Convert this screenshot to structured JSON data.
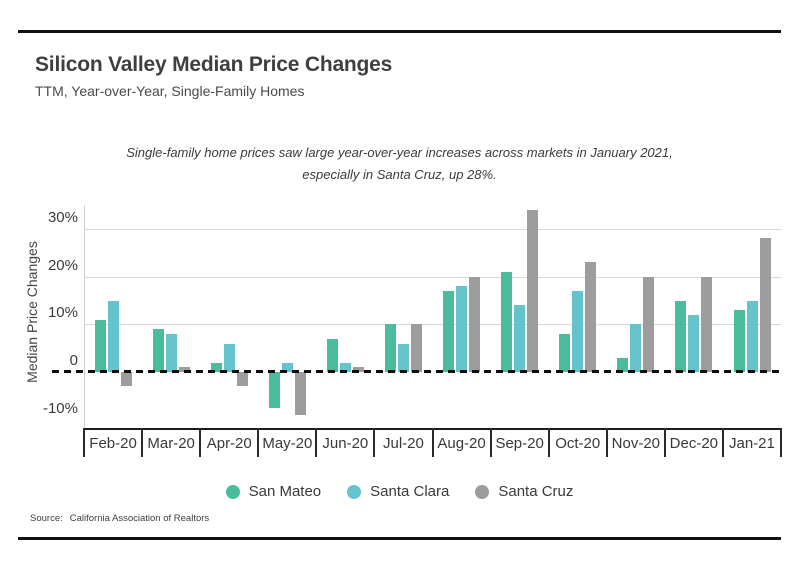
{
  "header": {
    "title": "Silicon Valley Median Price Changes",
    "subtitle": "TTM, Year-over-Year, Single-Family Homes"
  },
  "annotation": {
    "lines": [
      "Single-family home prices saw large year-over-year increases across markets in January 2021,",
      "especially in Santa Cruz, up 28%."
    ]
  },
  "chart_data": {
    "type": "bar",
    "title": "Silicon Valley Median Price Changes",
    "xlabel": "",
    "ylabel": "Median Price Changes",
    "unit": "%",
    "categories": [
      "Feb-20",
      "Mar-20",
      "Apr-20",
      "May-20",
      "Jun-20",
      "Jul-20",
      "Aug-20",
      "Sep-20",
      "Oct-20",
      "Nov-20",
      "Dec-20",
      "Jan-21"
    ],
    "series": [
      {
        "name": "San Mateo",
        "color": "#4BBB9D",
        "values": [
          11,
          9,
          2,
          -7.5,
          7,
          10,
          17,
          21,
          8,
          3,
          15,
          13
        ]
      },
      {
        "name": "Santa Clara",
        "color": "#65C3CC",
        "values": [
          15,
          8,
          6,
          2,
          2,
          6,
          18,
          14,
          17,
          10,
          12,
          15
        ]
      },
      {
        "name": "Santa Cruz",
        "color": "#9D9D9D",
        "values": [
          -3,
          1,
          -3,
          -9,
          1,
          10,
          20,
          34,
          23,
          20,
          20,
          28
        ]
      }
    ],
    "y_ticks": [
      {
        "label": "30%",
        "value": 30,
        "grid": true
      },
      {
        "label": "20%",
        "value": 20,
        "grid": true
      },
      {
        "label": "10%",
        "value": 10,
        "grid": true
      },
      {
        "label": "0",
        "value": 0,
        "grid": false
      },
      {
        "label": "-10%",
        "value": -10,
        "grid": false
      }
    ],
    "ylim": [
      -11.7,
      35
    ],
    "zero_line": "dashed-black",
    "grid": true,
    "legend_position": "bottom"
  },
  "source": {
    "label": "Source:",
    "text": "California Association of Realtors"
  },
  "colors": {
    "san_mateo": "#4BBB9D",
    "santa_clara": "#65C3CC",
    "santa_cruz": "#9D9D9D",
    "gridline": "#D9D9D9",
    "axis": "#1C1C1C",
    "zero_line": "#0D0D0D",
    "text": "#3F3F3F"
  }
}
